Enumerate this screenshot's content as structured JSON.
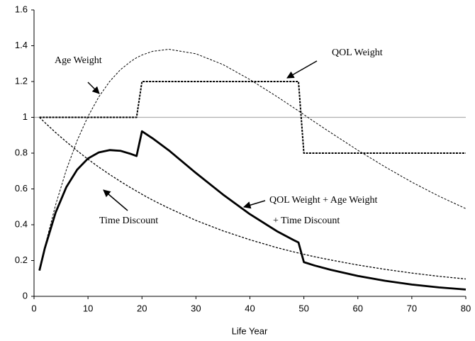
{
  "chart_data": {
    "type": "line",
    "x_label": "Life Year",
    "x": [
      1,
      2,
      4,
      6,
      8,
      10,
      12,
      14,
      16,
      18,
      19,
      20,
      22,
      25,
      30,
      35,
      40,
      45,
      48,
      49,
      50,
      52,
      55,
      60,
      65,
      70,
      75,
      80
    ],
    "series": [
      {
        "name": "Age Weight",
        "color": "#000000",
        "values": [
          0.144,
          0.277,
          0.511,
          0.708,
          0.871,
          1.005,
          1.114,
          1.2,
          1.266,
          1.314,
          1.333,
          1.348,
          1.369,
          1.38,
          1.355,
          1.295,
          1.211,
          1.116,
          1.056,
          1.036,
          1.015,
          0.974,
          0.914,
          0.816,
          0.724,
          0.638,
          0.56,
          0.49
        ]
      },
      {
        "name": "QOL Weight",
        "color": "#000000",
        "values": [
          1,
          1,
          1,
          1,
          1,
          1,
          1,
          1,
          1,
          1,
          1,
          1.2,
          1.2,
          1.2,
          1.2,
          1.2,
          1.2,
          1.2,
          1.2,
          1.2,
          0.8,
          0.8,
          0.8,
          0.8,
          0.8,
          0.8,
          0.8,
          0.8
        ]
      },
      {
        "name": "Time Discount",
        "color": "#000000",
        "values": [
          1,
          0.971,
          0.915,
          0.863,
          0.813,
          0.766,
          0.722,
          0.681,
          0.642,
          0.605,
          0.588,
          0.57,
          0.537,
          0.492,
          0.424,
          0.366,
          0.316,
          0.272,
          0.249,
          0.242,
          0.235,
          0.221,
          0.203,
          0.175,
          0.151,
          0.13,
          0.112,
          0.097
        ]
      },
      {
        "color": "#000000",
        "values": [
          0.144,
          0.269,
          0.468,
          0.611,
          0.708,
          0.77,
          0.804,
          0.817,
          0.813,
          0.795,
          0.784,
          0.922,
          0.882,
          0.815,
          0.689,
          0.569,
          0.459,
          0.364,
          0.316,
          0.301,
          0.191,
          0.172,
          0.148,
          0.114,
          0.087,
          0.066,
          0.05,
          0.038
        ]
      }
    ],
    "annotations": [
      "QOL Weight + Age Weight",
      "+ Time Discount"
    ],
    "reference_line": 1,
    "reference_color": "#b0b0b0",
    "xlim": [
      0,
      80
    ],
    "xticks": [
      0,
      10,
      20,
      30,
      40,
      50,
      60,
      70,
      80
    ],
    "ylim": [
      0,
      1.6
    ],
    "yticks": [
      0,
      0.2,
      0.4,
      0.6,
      0.8,
      1,
      1.2,
      1.4,
      1.6
    ]
  }
}
